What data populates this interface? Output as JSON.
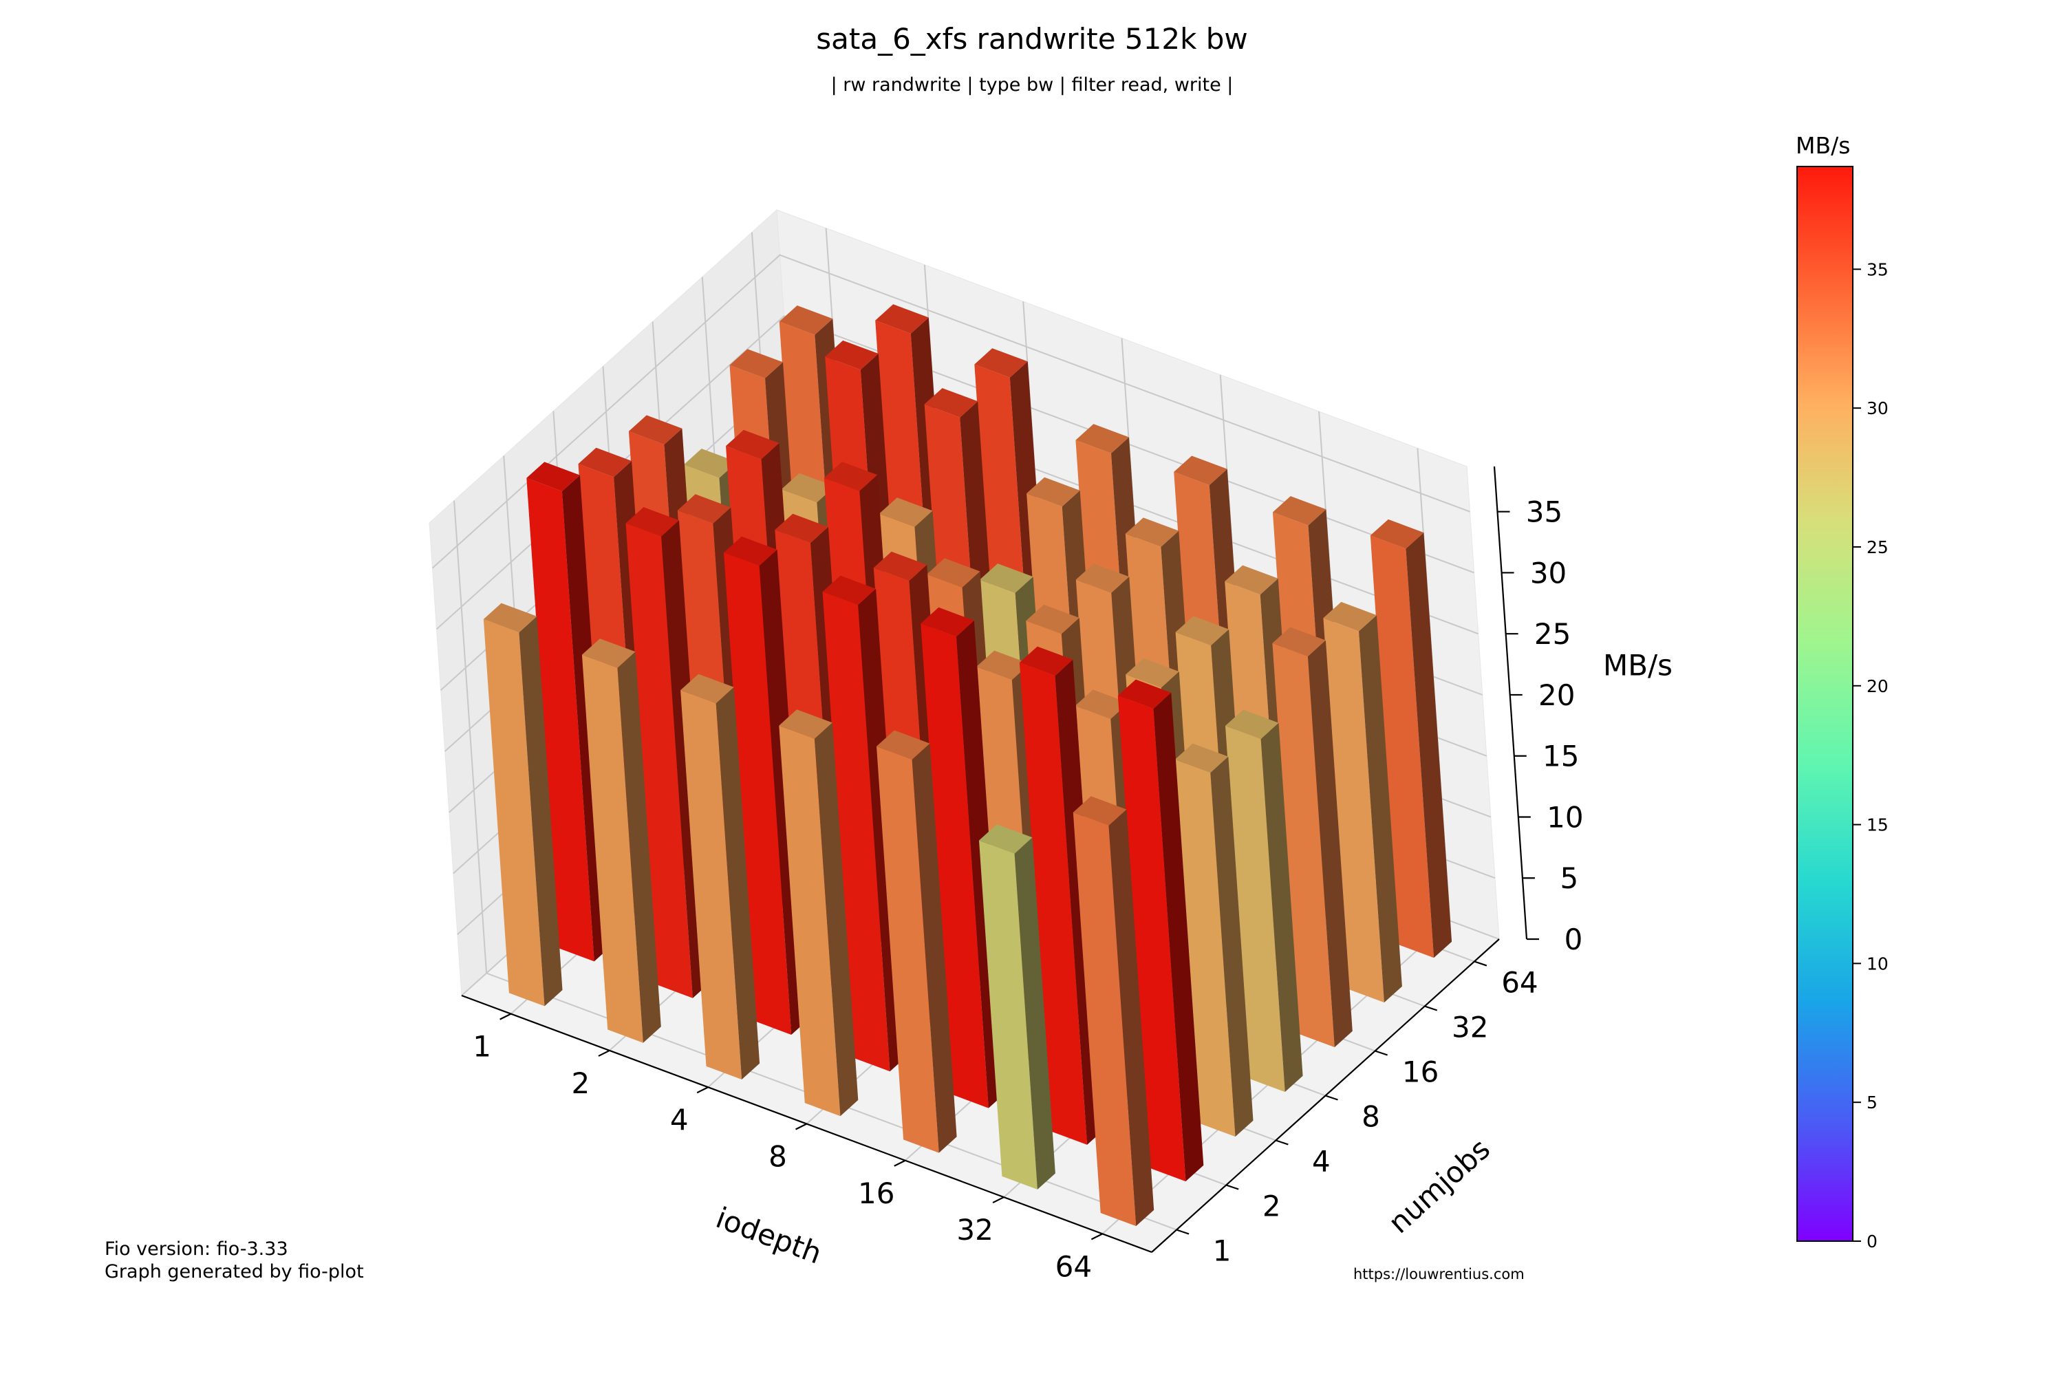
{
  "title": "sata_6_xfs randwrite 512k bw",
  "subtitle": "| rw randwrite | type bw | filter read, write |",
  "footer": {
    "fio_version": "Fio version: fio-3.33",
    "generator": "Graph generated by fio-plot",
    "url": "https://louwrentius.com"
  },
  "colorbar": {
    "label": "MB/s",
    "ticks": [
      "0",
      "5",
      "10",
      "15",
      "20",
      "25",
      "30",
      "35"
    ],
    "range": [
      0,
      38.7
    ]
  },
  "colors": {
    "gradient": [
      "#7f00ff",
      "#4a5cf5",
      "#1aa4e8",
      "#27d8d0",
      "#60f5b0",
      "#9ef58e",
      "#d6e07a",
      "#ffb060",
      "#ff6433",
      "#ff1a0d"
    ]
  },
  "chart_data": {
    "type": "bar3d",
    "xlabel": "iodepth",
    "ylabel": "numjobs",
    "zlabel": "MB/s",
    "x_categories": [
      "1",
      "2",
      "4",
      "8",
      "16",
      "32",
      "64"
    ],
    "y_categories": [
      "1",
      "2",
      "4",
      "8",
      "16",
      "32",
      "64"
    ],
    "z_ticks": [
      "0",
      "5",
      "10",
      "15",
      "20",
      "25",
      "30",
      "35"
    ],
    "zlim": [
      0,
      38.7
    ],
    "values": [
      [
        30.6,
        30.7,
        30.8,
        30.9,
        32.2,
        27.5,
        32.8
      ],
      [
        38.5,
        37.8,
        38.4,
        38.2,
        38.6,
        38.4,
        38.7
      ],
      [
        36.0,
        35.2,
        36.6,
        36.5,
        31.4,
        31.2,
        29.8
      ],
      [
        35.0,
        36.8,
        37.2,
        32.3,
        31.5,
        30.1,
        28.9
      ],
      [
        28.6,
        29.6,
        30.6,
        28.2,
        31.2,
        29.9,
        32.0
      ],
      [
        33.1,
        36.8,
        35.9,
        31.6,
        31.3,
        30.4,
        30.4
      ],
      [
        33.0,
        36.1,
        35.5,
        32.3,
        32.7,
        32.4,
        33.5
      ]
    ]
  }
}
